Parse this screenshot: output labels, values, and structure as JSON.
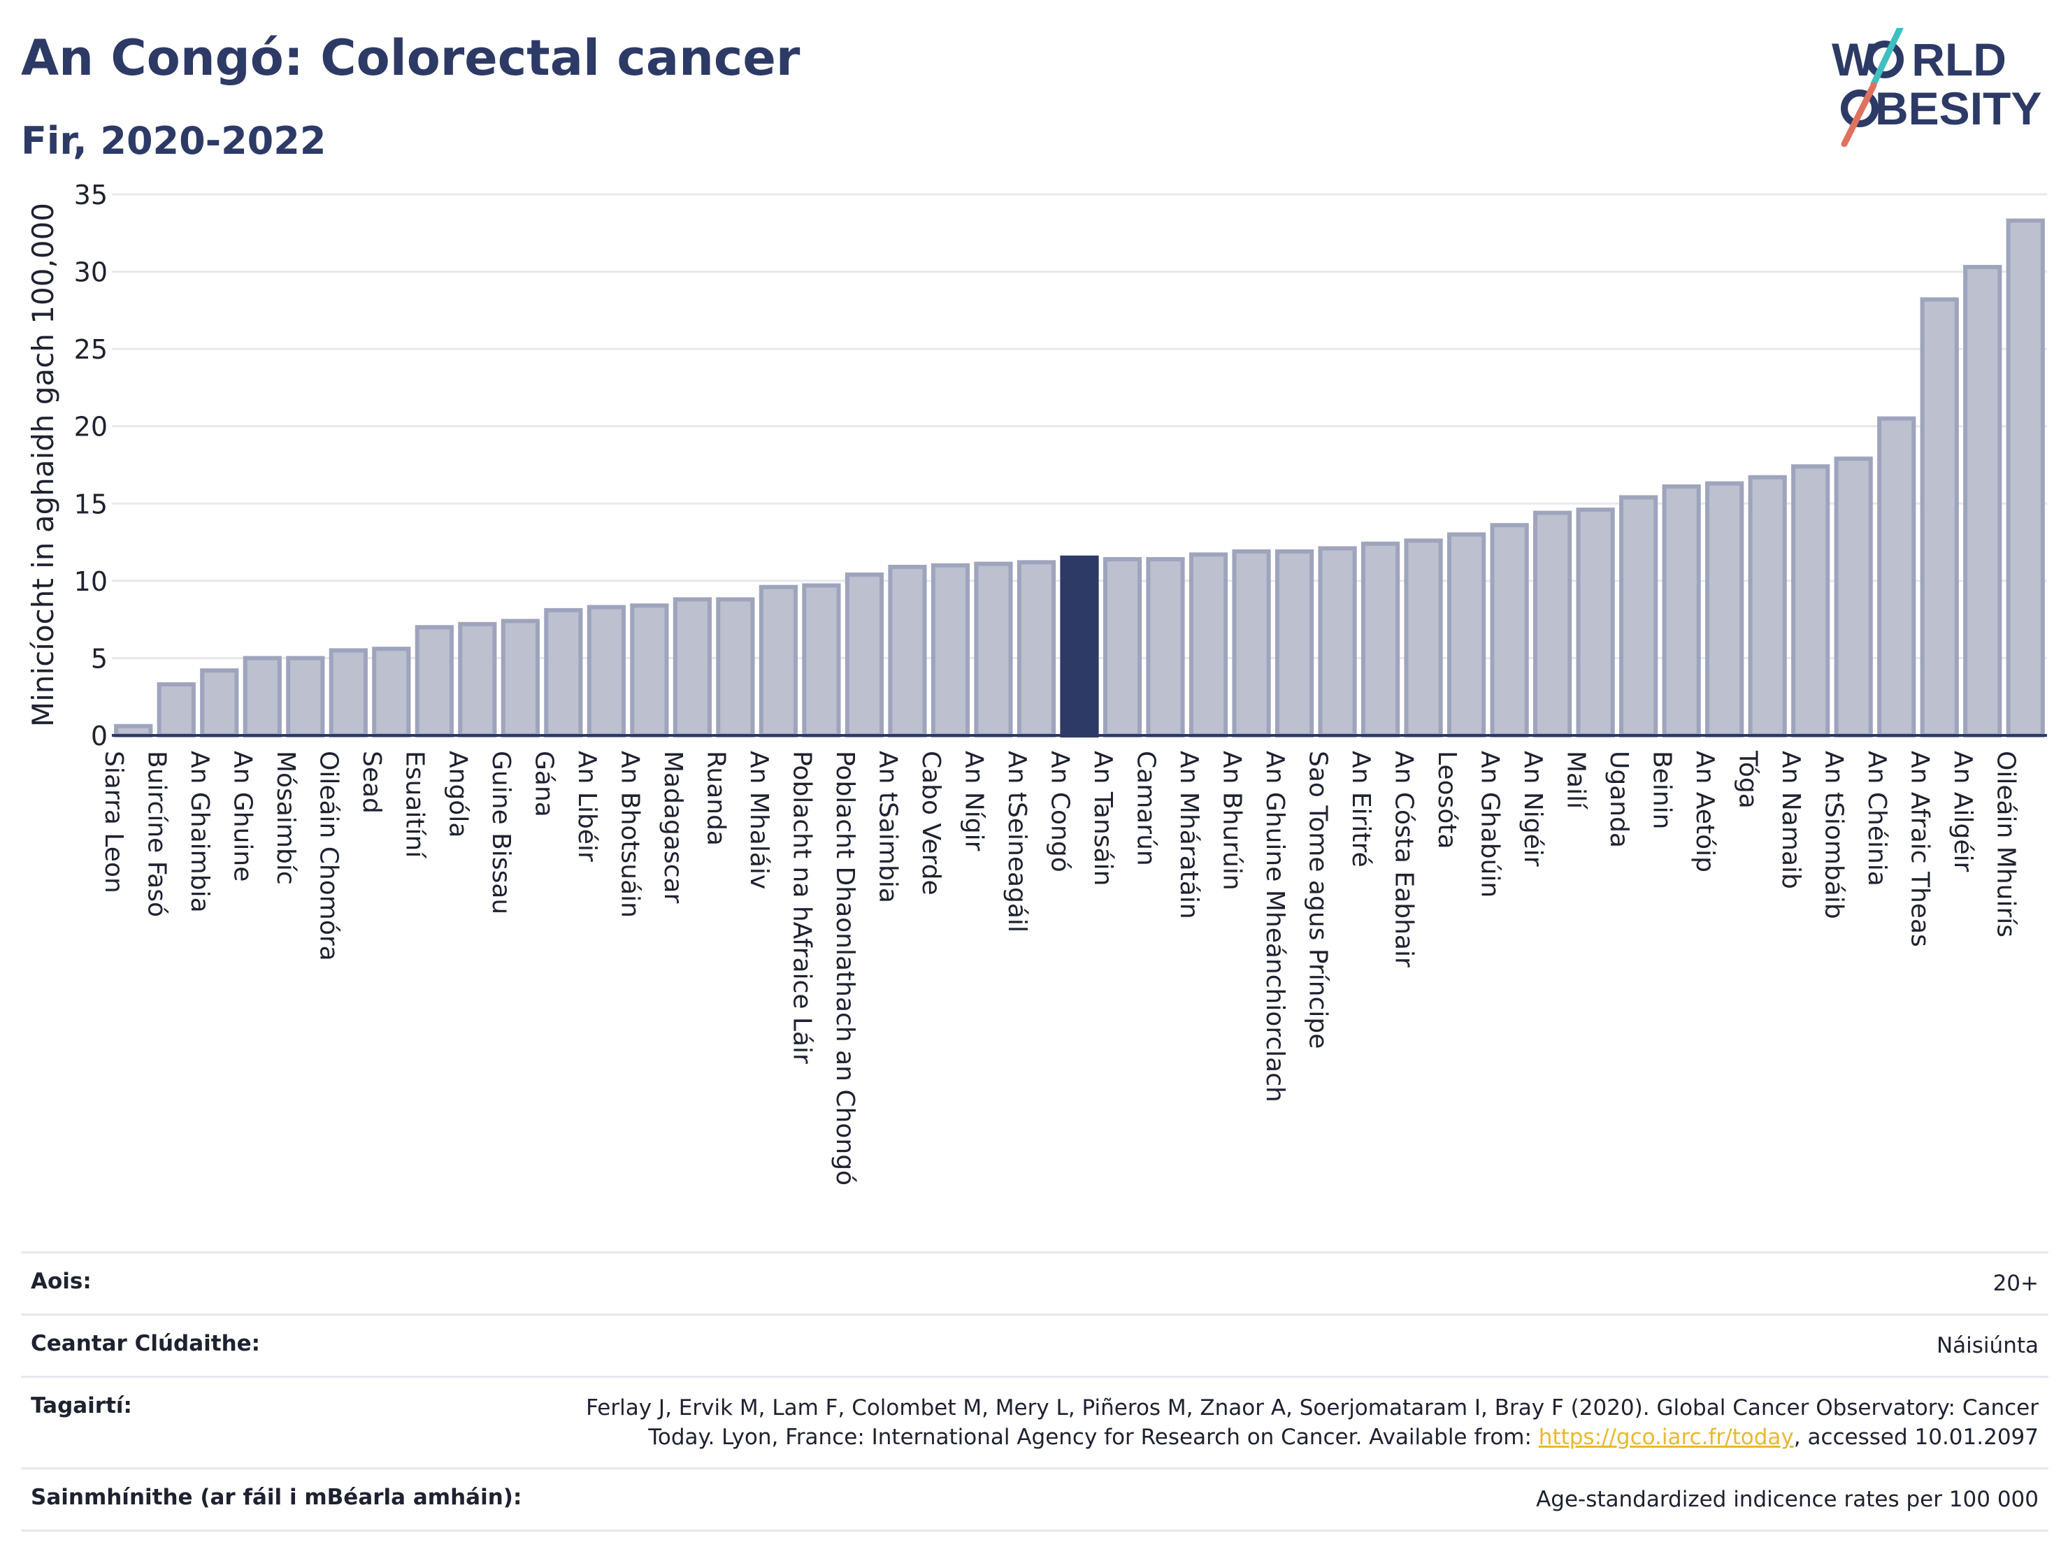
{
  "header": {
    "title": "An Congó: Colorectal cancer",
    "subtitle": "Fir, 2020-2022"
  },
  "logo": {
    "line1_a": "W",
    "line1_b": "RLD",
    "line2_a": "",
    "line2_b": "BESITY",
    "icon": "world-obesity-logo"
  },
  "colors": {
    "bar": "#bcc0cf",
    "bar_border": "#9ea4bc",
    "highlight": "#2d3a66",
    "grid": "#e6e8ee",
    "axis": "#2d3a66"
  },
  "chart_data": {
    "type": "bar",
    "ylabel": "Minicíocht in aghaidh gach 100,000",
    "ylim": [
      0,
      35
    ],
    "yticks": [
      0,
      5,
      10,
      15,
      20,
      25,
      30,
      35
    ],
    "highlight": "An Congó",
    "categories": [
      "Siarra Leon",
      "Buircíne Fasó",
      "An Ghaimbia",
      "An Ghuine",
      "Mósaimbíc",
      "Oileáin Chomóra",
      "Sead",
      "Esuaitíní",
      "Angóla",
      "Guine Bissau",
      "Gána",
      "An Libéir",
      "An Bhotsuáin",
      "Madagascar",
      "Ruanda",
      "An Mhaláiv",
      "Poblacht na hAfraice Láir",
      "Poblacht Dhaonlathach an Chongó",
      "An tSaimbia",
      "Cabo Verde",
      "An Nígir",
      "An tSeineagáil",
      "An Congó",
      "An Tansáin",
      "Camarún",
      "An Mháratáin",
      "An Bhurúin",
      "An Ghuine Mheánchiorclach",
      "Sao Tome agus Príncipe",
      "An Eiritré",
      "An Cósta Eabhair",
      "Leosóta",
      "An Ghabúin",
      "An Nigéir",
      "Mailí",
      "Uganda",
      "Beinin",
      "An Aetóip",
      "Tóga",
      "An Namaib",
      "An tSiombáib",
      "An Chéinia",
      "An Afraic Theas",
      "An Ailgéir",
      "Oileáin Mhuirís"
    ],
    "values": [
      0.6,
      3.3,
      4.2,
      5.0,
      5.0,
      5.5,
      5.6,
      7.0,
      7.2,
      7.4,
      8.1,
      8.3,
      8.4,
      8.8,
      8.8,
      9.6,
      9.7,
      10.4,
      10.9,
      11.0,
      11.1,
      11.2,
      11.5,
      11.4,
      11.4,
      11.7,
      11.9,
      11.9,
      12.1,
      12.4,
      12.6,
      13.0,
      13.6,
      14.4,
      14.6,
      15.4,
      16.1,
      16.3,
      16.7,
      17.4,
      17.9,
      20.5,
      28.2,
      30.3,
      33.3
    ]
  },
  "meta": {
    "rows": [
      {
        "key": "Aois:",
        "value": "20+"
      },
      {
        "key": "Ceantar Clúdaithe:",
        "value": "Náisiúnta"
      },
      {
        "key": "Tagairtí:",
        "value": "Ferlay J, Ervik M, Lam F, Colombet M, Mery L, Piñeros M, Znaor A, Soerjomataram I, Bray F (2020). Global Cancer Observatory: Cancer Today. Lyon, France: International Agency for Research on Cancer. Available from: ",
        "link": "https://gco.iarc.fr/today",
        "suffix": ", accessed 10.01.2097"
      },
      {
        "key": "Sainmhínithe (ar fáil i mBéarla amháin):",
        "value": "Age-standardized indicence rates per 100 000"
      }
    ]
  }
}
